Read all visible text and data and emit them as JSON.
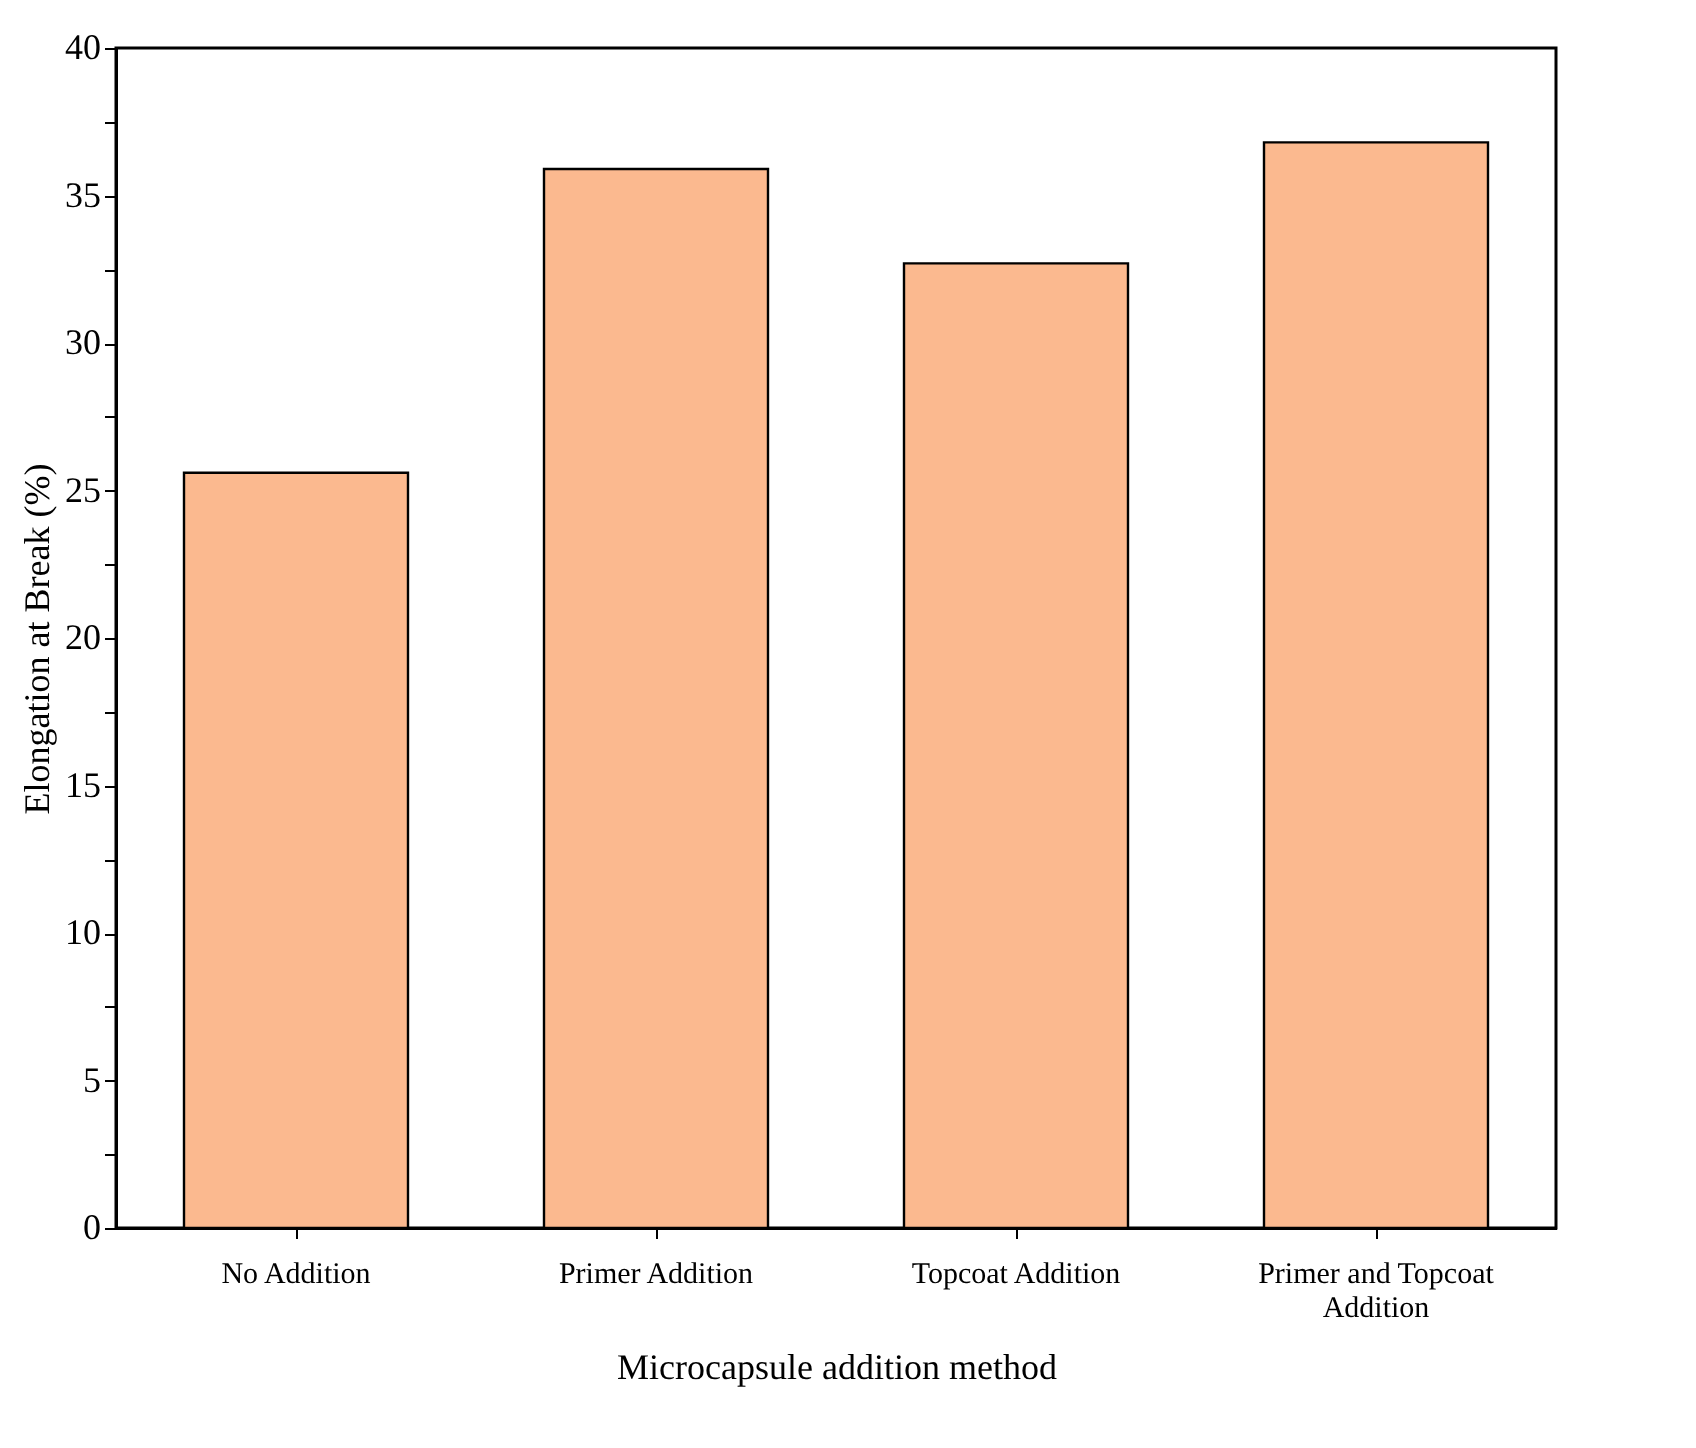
{
  "chart_data": {
    "type": "bar",
    "xlabel": "Microcapsule addition method",
    "ylabel": "Elongation at Break (%)",
    "categories": [
      "No Addition",
      "Primer Addition",
      "Topcoat Addition",
      "Primer and Topcoat Addition"
    ],
    "values": [
      25.6,
      35.9,
      32.7,
      36.8
    ],
    "color": "#fbb98f",
    "ylim": [
      0,
      40
    ],
    "yticks": [
      0,
      {
        "value": 2.5,
        "label": null
      },
      5,
      {
        "value": 7.5,
        "label": null
      },
      10,
      {
        "value": 12.5,
        "label": null
      },
      15,
      {
        "value": 17.5,
        "label": null
      },
      20,
      {
        "value": 22.5,
        "label": null
      },
      25,
      {
        "value": 27.5,
        "label": null
      },
      30,
      {
        "value": 32.5,
        "label": null
      },
      35,
      {
        "value": 37.5,
        "label": null
      },
      40
    ],
    "grid": false
  }
}
